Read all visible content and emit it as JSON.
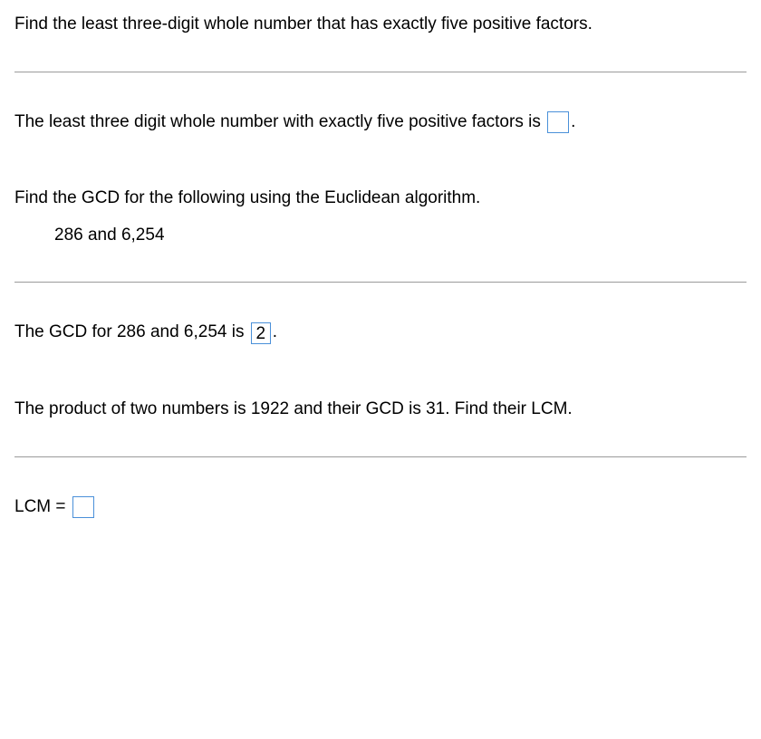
{
  "problem1": {
    "question": "Find the least three-digit whole number that has exactly five positive factors.",
    "answer_prefix": "The least three digit whole number with exactly five positive factors is",
    "answer_value": "",
    "answer_suffix": "."
  },
  "problem2": {
    "question_line1": "Find the GCD for the following using the Euclidean algorithm.",
    "question_line2": "286 and 6,254",
    "answer_prefix": "The GCD for 286 and 6,254 is",
    "answer_value": "2",
    "answer_suffix": "."
  },
  "problem3": {
    "question": "The product of two numbers is 1922 and their GCD is 31. Find their LCM.",
    "answer_prefix": "LCM =",
    "answer_value": ""
  },
  "colors": {
    "text": "#000000",
    "background": "#ffffff",
    "divider": "#9b9b9b",
    "input_border": "#4a90d9"
  },
  "typography": {
    "font_family": "Arial",
    "font_size_pt": 14,
    "font_weight": "normal"
  }
}
